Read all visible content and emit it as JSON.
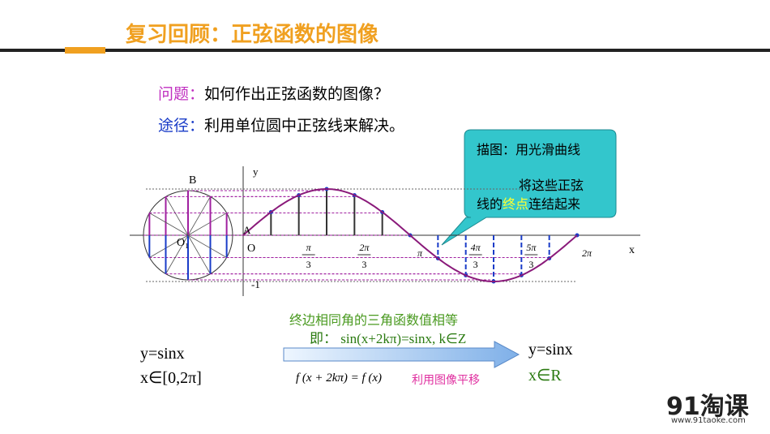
{
  "header": {
    "title": "复习回顾：正弦函数的图像"
  },
  "question": {
    "label": "问题：",
    "text": "如何作出正弦函数的图像？"
  },
  "approach": {
    "label": "途径：",
    "text": "利用单位圆中正弦线来解决。"
  },
  "callout": {
    "line1": "描图：用光滑曲线",
    "line2": "将这些正弦",
    "line3_start": "线的",
    "highlight": "终点",
    "line3_end": "连结起来"
  },
  "diagram": {
    "point_b": "B",
    "y_axis": "y",
    "point_a": "A",
    "center": "O₁",
    "origin": "O",
    "x_axis": "x",
    "minus_one": "-1",
    "x_ticks": [
      {
        "num": "π",
        "den": "3"
      },
      {
        "num": "2π",
        "den": "3"
      },
      {
        "num": "π"
      },
      {
        "num": "4π",
        "den": "3"
      },
      {
        "num": "5π",
        "den": "3"
      },
      {
        "num": "2π"
      }
    ]
  },
  "bottom": {
    "left_function": "y=sinx",
    "left_domain": "x∈[0,2π]",
    "arrow_top": "终边相同角的三角函数值相等",
    "arrow_formula": "即：  sin(x+2kπ)=sinx,  k∈Z",
    "periodic": "f (x + 2kπ) = f (x)",
    "shift_note": "利用图像平移",
    "right_function": "y=sinx",
    "right_domain": "x∈R"
  },
  "logo": {
    "brand": "91淘课",
    "url": "www.91taoke.com"
  }
}
